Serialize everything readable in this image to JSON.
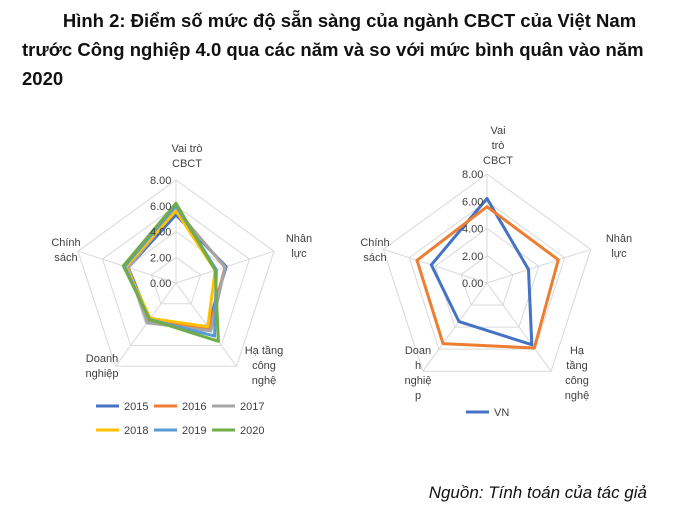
{
  "figure": {
    "title_line1": "Hình 2: Điểm số mức độ sẵn sàng của ngành CBCT của Việt Nam",
    "title_line2": "trước Công nghiệp 4.0 qua các năm và so với mức bình quân vào năm",
    "title_line3": "2020",
    "source": "Nguồn: Tính toán của tác giả"
  },
  "chart_data": [
    {
      "type": "radar",
      "axes": [
        [
          "Vai trò",
          "CBCT"
        ],
        [
          "Nhân",
          "lực"
        ],
        [
          "Hạ tầng",
          "công",
          "nghệ"
        ],
        [
          "Doanh",
          "nghiệp"
        ],
        [
          "Chính",
          "sách"
        ]
      ],
      "ticks": [
        "0.00",
        "2.00",
        "4.00",
        "6.00",
        "8.00"
      ],
      "range": [
        0,
        8
      ],
      "grid": true,
      "legend_position": "bottom",
      "series": [
        {
          "name": "2015",
          "color": "#4472C4",
          "values": [
            5.3,
            4.1,
            4.2,
            3.5,
            3.9
          ]
        },
        {
          "name": "2016",
          "color": "#ED7D31",
          "values": [
            5.7,
            4.0,
            4.4,
            3.6,
            4.0
          ]
        },
        {
          "name": "2017",
          "color": "#A5A5A5",
          "values": [
            5.7,
            4.0,
            4.6,
            3.8,
            3.9
          ]
        },
        {
          "name": "2018",
          "color": "#FFC000",
          "values": [
            5.6,
            3.2,
            4.2,
            3.4,
            4.1
          ]
        },
        {
          "name": "2019",
          "color": "#5B9BD5",
          "values": [
            6.0,
            3.3,
            5.1,
            3.5,
            4.2
          ]
        },
        {
          "name": "2020",
          "color": "#70AD47",
          "values": [
            6.2,
            3.2,
            5.6,
            3.5,
            4.3
          ]
        }
      ]
    },
    {
      "type": "radar",
      "axes": [
        [
          "Vai",
          "trò",
          "CBCT"
        ],
        [
          "Nhân",
          "lực"
        ],
        [
          "Hạ",
          "tầng",
          "công",
          "nghệ"
        ],
        [
          "Doan",
          "h",
          "nghiệ",
          "p"
        ],
        [
          "Chính",
          "sách"
        ]
      ],
      "ticks": [
        "0.00",
        "2.00",
        "4.00",
        "6.00",
        "8.00"
      ],
      "range": [
        0,
        8
      ],
      "grid": true,
      "legend_position": "bottom",
      "series": [
        {
          "name": "VN",
          "color": "#4472C4",
          "values": [
            6.2,
            3.2,
            5.6,
            3.5,
            4.3
          ]
        },
        {
          "name": "",
          "color": "#ED7D31",
          "values": [
            5.6,
            5.5,
            5.9,
            5.5,
            5.4
          ]
        }
      ]
    }
  ]
}
